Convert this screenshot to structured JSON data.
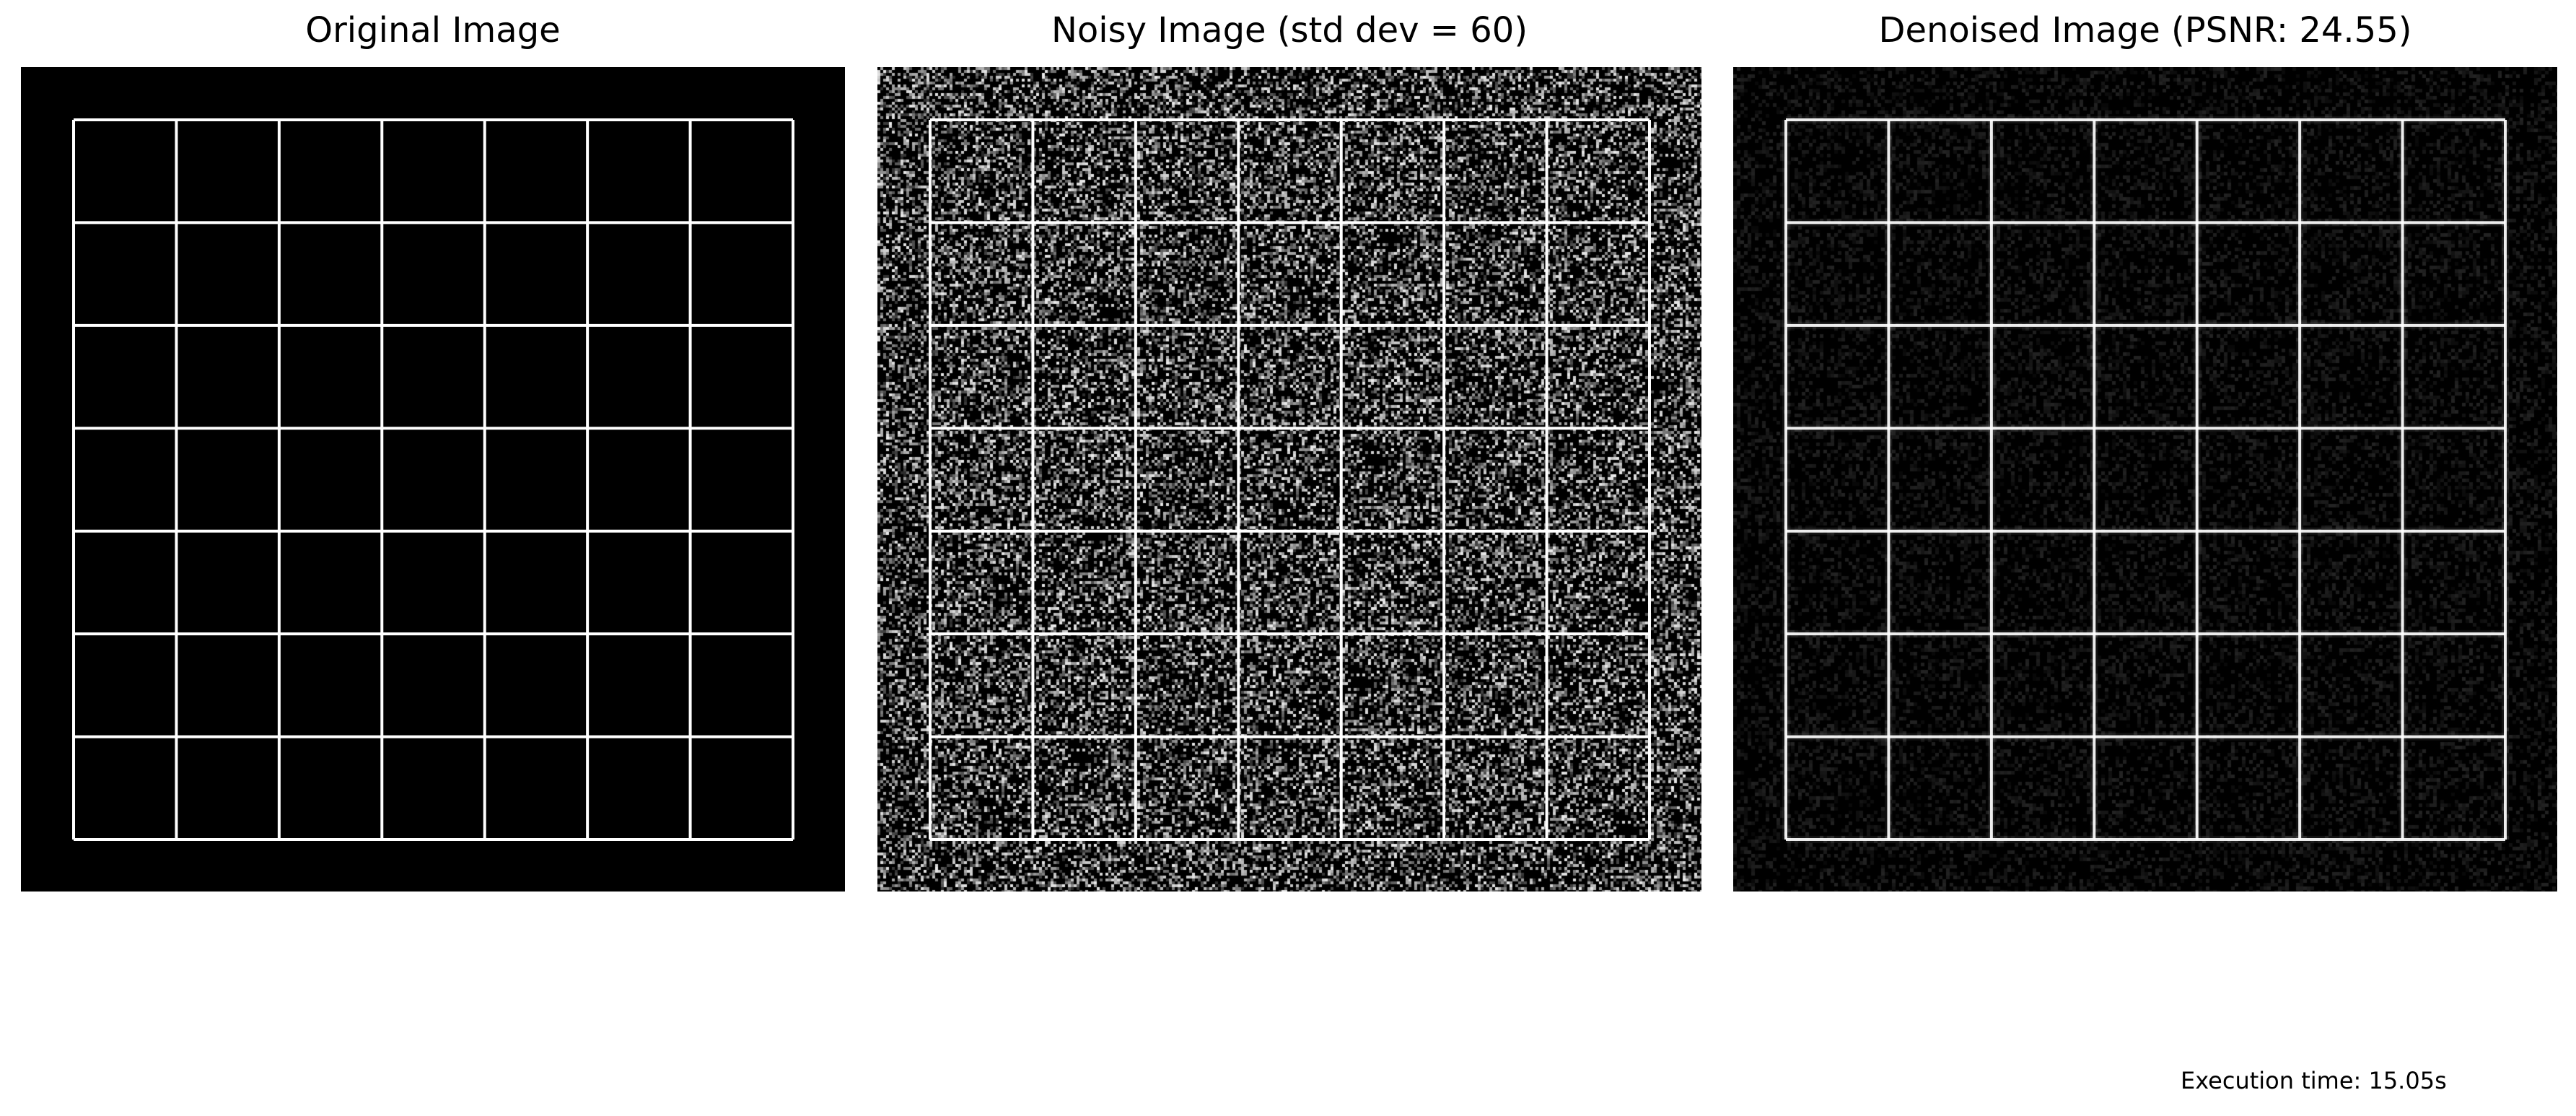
{
  "panels": [
    {
      "id": "original",
      "title": "Original Image",
      "noise": "none"
    },
    {
      "id": "noisy",
      "title": "Noisy Image (std dev = 60)",
      "noise": "heavy"
    },
    {
      "id": "denoised",
      "title": "Denoised Image (PSNR: 24.55)",
      "noise": "faint"
    }
  ],
  "grid": {
    "rows": 7,
    "cols": 7,
    "line_color": "#ffffff",
    "background": "#000000"
  },
  "footer": {
    "execution_time": "Execution time: 15.05s"
  }
}
